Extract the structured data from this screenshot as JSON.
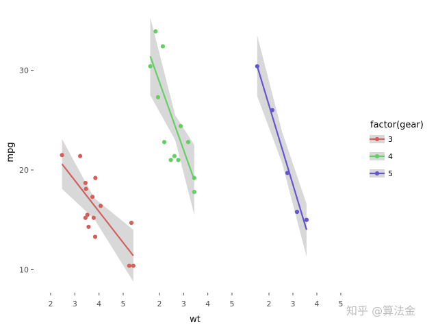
{
  "chart_data": {
    "type": "scatter",
    "title": "",
    "xlabel": "wt",
    "ylabel": "mpg",
    "facets": 3,
    "xlim": [
      1.5,
      5.6
    ],
    "ylim": [
      7.5,
      35.5
    ],
    "x_ticks": [
      2,
      3,
      4,
      5
    ],
    "y_ticks": [
      10,
      20,
      30
    ],
    "legend_title": "factor(gear)",
    "legend_position": "right",
    "series": [
      {
        "name": "3",
        "color": "#d1605a",
        "points": [
          {
            "x": 2.47,
            "y": 21.5
          },
          {
            "x": 3.22,
            "y": 21.4
          },
          {
            "x": 3.44,
            "y": 18.7
          },
          {
            "x": 3.46,
            "y": 18.1
          },
          {
            "x": 3.57,
            "y": 14.3
          },
          {
            "x": 3.44,
            "y": 15.2
          },
          {
            "x": 3.52,
            "y": 15.5
          },
          {
            "x": 3.73,
            "y": 17.3
          },
          {
            "x": 3.78,
            "y": 15.2
          },
          {
            "x": 3.84,
            "y": 13.3
          },
          {
            "x": 3.85,
            "y": 19.2
          },
          {
            "x": 4.07,
            "y": 16.4
          },
          {
            "x": 5.25,
            "y": 10.4
          },
          {
            "x": 5.42,
            "y": 10.4
          },
          {
            "x": 5.34,
            "y": 14.7
          }
        ],
        "fit": {
          "x": [
            2.47,
            5.42
          ],
          "y": [
            20.6,
            11.4
          ]
        },
        "band": {
          "x": [
            2.47,
            3.8,
            5.42
          ],
          "lower": [
            18.1,
            15.1,
            8.8
          ],
          "upper": [
            23.1,
            17.2,
            14.0
          ]
        }
      },
      {
        "name": "4",
        "color": "#63cf62",
        "points": [
          {
            "x": 1.62,
            "y": 30.4
          },
          {
            "x": 1.84,
            "y": 33.9
          },
          {
            "x": 1.94,
            "y": 27.3
          },
          {
            "x": 2.14,
            "y": 32.4
          },
          {
            "x": 2.2,
            "y": 22.8
          },
          {
            "x": 2.47,
            "y": 21.0
          },
          {
            "x": 2.62,
            "y": 21.4
          },
          {
            "x": 2.78,
            "y": 21.0
          },
          {
            "x": 2.88,
            "y": 24.4
          },
          {
            "x": 3.19,
            "y": 22.8
          },
          {
            "x": 3.44,
            "y": 19.2
          },
          {
            "x": 3.44,
            "y": 17.8
          }
        ],
        "fit": {
          "x": [
            1.62,
            3.44
          ],
          "y": [
            31.4,
            19.0
          ]
        },
        "band": {
          "x": [
            1.62,
            2.65,
            3.44
          ],
          "lower": [
            27.5,
            23.0,
            15.5
          ],
          "upper": [
            35.3,
            25.5,
            22.5
          ]
        }
      },
      {
        "name": "5",
        "color": "#6355d0",
        "points": [
          {
            "x": 1.51,
            "y": 30.4
          },
          {
            "x": 2.14,
            "y": 26.0
          },
          {
            "x": 2.77,
            "y": 19.7
          },
          {
            "x": 3.17,
            "y": 15.8
          },
          {
            "x": 3.57,
            "y": 15.0
          }
        ],
        "fit": {
          "x": [
            1.51,
            3.57
          ],
          "y": [
            30.4,
            14.0
          ]
        },
        "band": {
          "x": [
            1.51,
            2.55,
            3.57
          ],
          "lower": [
            27.4,
            20.7,
            11.3
          ],
          "upper": [
            33.5,
            23.8,
            16.6
          ]
        }
      }
    ]
  },
  "watermark": "知乎 @算法金"
}
